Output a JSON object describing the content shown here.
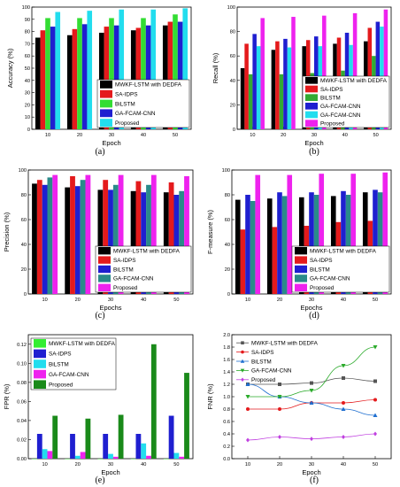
{
  "chart_data": [
    {
      "id": "a",
      "type": "bar",
      "caption": "(a)",
      "xlabel": "Epoch",
      "ylabel": "Accuracy (%)",
      "ylim": [
        0,
        100
      ],
      "yticks": [
        0,
        10,
        20,
        30,
        40,
        50,
        60,
        70,
        80,
        90,
        100
      ],
      "categories": [
        "10",
        "20",
        "30",
        "40",
        "50"
      ],
      "legend_position": "bottom-right",
      "series": [
        {
          "name": "MWKF-LSTM with DEDFA",
          "color": "#000000",
          "values": [
            75,
            77,
            79,
            81,
            85
          ]
        },
        {
          "name": "SA-IDPS",
          "color": "#e41a1c",
          "values": [
            81,
            82,
            84,
            83,
            88
          ]
        },
        {
          "name": "BiLSTM",
          "color": "#33dd33",
          "values": [
            91,
            91,
            91,
            91,
            94
          ]
        },
        {
          "name": "GA-FCAM-CNN",
          "color": "#1f1fd0",
          "values": [
            84,
            86,
            85,
            85,
            88
          ]
        },
        {
          "name": "Proposed",
          "color": "#22ddee",
          "values": [
            96,
            97,
            98,
            98,
            99
          ]
        }
      ]
    },
    {
      "id": "b",
      "type": "bar",
      "caption": "(b)",
      "xlabel": "Epoch",
      "ylabel": "Recall (%)",
      "ylim": [
        0,
        100
      ],
      "yticks": [
        0,
        20,
        40,
        60,
        80,
        100
      ],
      "categories": [
        "10",
        "20",
        "30",
        "40",
        "50"
      ],
      "legend_position": "bottom-right",
      "series": [
        {
          "name": "MWKF-LSTM with DEDFA",
          "color": "#000000",
          "values": [
            50,
            65,
            68,
            70,
            72
          ]
        },
        {
          "name": "SA-IDPS",
          "color": "#e41a1c",
          "values": [
            70,
            72,
            73,
            75,
            83
          ]
        },
        {
          "name": "BiLSTM",
          "color": "#33aa33",
          "values": [
            45,
            45,
            46,
            48,
            60
          ]
        },
        {
          "name": "GA-FCAM-CNN",
          "color": "#1f1fd0",
          "values": [
            78,
            74,
            76,
            79,
            88
          ]
        },
        {
          "name": "GA-FCAM-CNN",
          "color": "#22ddee",
          "values": [
            68,
            67,
            68,
            69,
            84
          ]
        },
        {
          "name": "Proposed",
          "color": "#ee22ee",
          "values": [
            91,
            92,
            93,
            95,
            98
          ]
        }
      ]
    },
    {
      "id": "c",
      "type": "bar",
      "caption": "(c)",
      "xlabel": "Epochs",
      "ylabel": "Precision (%)",
      "ylim": [
        0,
        100
      ],
      "yticks": [
        0,
        20,
        40,
        60,
        80,
        100
      ],
      "categories": [
        "10",
        "20",
        "30",
        "40",
        "50"
      ],
      "legend_position": "bottom-right",
      "series": [
        {
          "name": "MWKF-LSTM with DEDFA",
          "color": "#000000",
          "values": [
            89,
            86,
            84,
            83,
            82
          ]
        },
        {
          "name": "SA-IDPS",
          "color": "#e41a1c",
          "values": [
            92,
            95,
            92,
            91,
            90
          ]
        },
        {
          "name": "BiLSTM",
          "color": "#1f1fd0",
          "values": [
            88,
            87,
            84,
            82,
            80
          ]
        },
        {
          "name": "GA-FCAM-CNN",
          "color": "#2a8a8a",
          "values": [
            94,
            92,
            88,
            88,
            83
          ]
        },
        {
          "name": "Proposed",
          "color": "#ee22ee",
          "values": [
            96,
            96,
            96,
            96,
            95
          ]
        }
      ]
    },
    {
      "id": "d",
      "type": "bar",
      "caption": "(d)",
      "xlabel": "Epochs",
      "ylabel": "F-measure (%)",
      "ylim": [
        0,
        100
      ],
      "yticks": [
        0,
        20,
        40,
        60,
        80,
        100
      ],
      "categories": [
        "10",
        "20",
        "30",
        "40",
        "50"
      ],
      "legend_position": "bottom-right",
      "series": [
        {
          "name": "MWKF-LSTM with DEDFA",
          "color": "#000000",
          "values": [
            76,
            77,
            78,
            79,
            82
          ]
        },
        {
          "name": "SA-IDPS",
          "color": "#e41a1c",
          "values": [
            52,
            54,
            55,
            58,
            59
          ]
        },
        {
          "name": "BiLSTM",
          "color": "#1f1fd0",
          "values": [
            80,
            82,
            82,
            83,
            84
          ]
        },
        {
          "name": "GA-FCAM-CNN",
          "color": "#2a8a8a",
          "values": [
            75,
            79,
            80,
            80,
            82
          ]
        },
        {
          "name": "Proposed",
          "color": "#ee22ee",
          "values": [
            96,
            96,
            97,
            97,
            98
          ]
        }
      ]
    },
    {
      "id": "e",
      "type": "bar",
      "caption": "(e)",
      "xlabel": "Epoch",
      "ylabel": "FPR (%)",
      "ylim": [
        0,
        0.13
      ],
      "yticks": [
        0.0,
        0.02,
        0.04,
        0.06,
        0.08,
        0.1,
        0.12
      ],
      "categories": [
        "10",
        "20",
        "30",
        "40",
        "50"
      ],
      "legend_position": "top-left",
      "series": [
        {
          "name": "MWKF-LSTM with DEDFA",
          "color": "#33ee33",
          "values": [
            0.0,
            0.0,
            0.0,
            0.0,
            0.0
          ]
        },
        {
          "name": "SA-IDPS",
          "color": "#1f1fd0",
          "values": [
            0.026,
            0.026,
            0.026,
            0.026,
            0.045
          ]
        },
        {
          "name": "BiLSTM",
          "color": "#22ddee",
          "values": [
            0.01,
            0.003,
            0.005,
            0.016,
            0.006
          ]
        },
        {
          "name": "GA-FCAM-CNN",
          "color": "#ee22ee",
          "values": [
            0.008,
            0.007,
            0.002,
            0.003,
            0.002
          ]
        },
        {
          "name": "Proposed",
          "color": "#1a8a1a",
          "values": [
            0.045,
            0.042,
            0.046,
            0.12,
            0.09
          ]
        }
      ]
    },
    {
      "id": "f",
      "type": "line",
      "caption": "(f)",
      "xlabel": "Epoch",
      "ylabel": "FNR (%)",
      "ylim": [
        0,
        2.0
      ],
      "yticks": [
        0.0,
        0.2,
        0.4,
        0.6,
        0.8,
        1.0,
        1.2,
        1.4,
        1.6,
        1.8,
        2.0
      ],
      "xlim": [
        5,
        55
      ],
      "x": [
        10,
        20,
        30,
        40,
        50
      ],
      "legend_position": "top-left",
      "series": [
        {
          "name": "MWKF-LSTM with DEDFA",
          "color": "#555555",
          "marker": "square",
          "values": [
            1.2,
            1.2,
            1.22,
            1.3,
            1.25
          ]
        },
        {
          "name": "SA-IDPS",
          "color": "#e41a1c",
          "marker": "circle",
          "values": [
            0.8,
            0.8,
            0.9,
            0.9,
            0.95
          ]
        },
        {
          "name": "BiLSTM",
          "color": "#1f6fd0",
          "marker": "triangle-up",
          "values": [
            1.2,
            1.0,
            0.9,
            0.8,
            0.7
          ]
        },
        {
          "name": "GA-FCAM-CNN",
          "color": "#2aaa2a",
          "marker": "triangle-down",
          "values": [
            1.0,
            1.0,
            1.1,
            1.5,
            1.8
          ]
        },
        {
          "name": "Proposed",
          "color": "#c040e0",
          "marker": "diamond",
          "values": [
            0.3,
            0.35,
            0.32,
            0.35,
            0.4
          ]
        }
      ]
    }
  ]
}
